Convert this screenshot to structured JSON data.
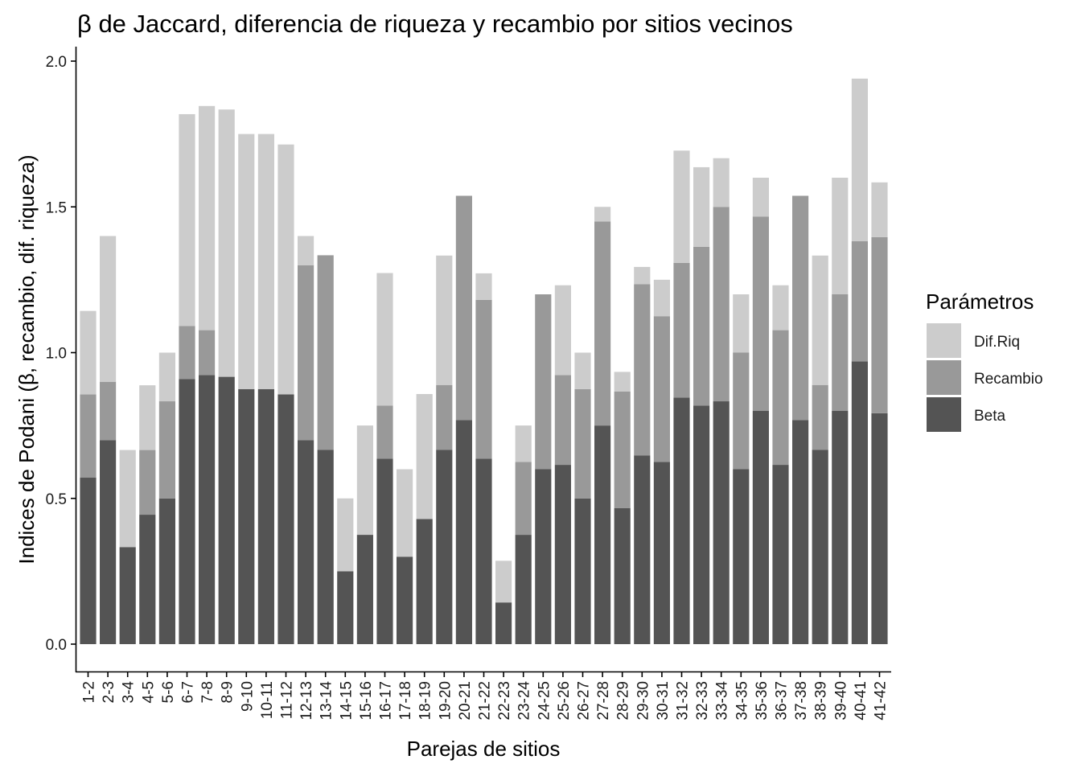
{
  "chart_data": {
    "type": "bar",
    "stacked": true,
    "title": "β de Jaccard, diferencia de riqueza y recambio por sitios vecinos",
    "xlabel": "Parejas de sitios",
    "ylabel": "Indices de Podani (β, recambio, dif. riqueza)",
    "ylim": [
      0,
      2.0
    ],
    "yticks": [
      "0.0",
      "0.5",
      "1.0",
      "1.5",
      "2.0"
    ],
    "grid": false,
    "legend": {
      "title": "Parámetros",
      "position": "right"
    },
    "categories": [
      "1-2",
      "2-3",
      "3-4",
      "4-5",
      "5-6",
      "6-7",
      "7-8",
      "8-9",
      "9-10",
      "10-11",
      "11-12",
      "12-13",
      "13-14",
      "14-15",
      "15-16",
      "16-17",
      "17-18",
      "18-19",
      "19-20",
      "20-21",
      "21-22",
      "22-23",
      "23-24",
      "24-25",
      "25-26",
      "26-27",
      "27-28",
      "28-29",
      "29-30",
      "30-31",
      "31-32",
      "32-33",
      "33-34",
      "34-35",
      "35-36",
      "36-37",
      "37-38",
      "38-39",
      "39-40",
      "40-41",
      "41-42"
    ],
    "series": [
      {
        "name": "Beta",
        "color": "#545454",
        "values": [
          0.571,
          0.7,
          0.333,
          0.444,
          0.5,
          0.909,
          0.923,
          0.917,
          0.875,
          0.875,
          0.857,
          0.7,
          0.667,
          0.25,
          0.375,
          0.636,
          0.3,
          0.429,
          0.667,
          0.769,
          0.636,
          0.143,
          0.375,
          0.6,
          0.615,
          0.5,
          0.75,
          0.467,
          0.647,
          0.625,
          0.846,
          0.818,
          0.833,
          0.6,
          0.8,
          0.615,
          0.769,
          0.667,
          0.8,
          0.97,
          0.792
        ]
      },
      {
        "name": "Recambio",
        "color": "#999999",
        "values": [
          0.286,
          0.2,
          0.0,
          0.222,
          0.333,
          0.182,
          0.154,
          0.0,
          0.0,
          0.0,
          0.0,
          0.6,
          0.667,
          0.0,
          0.0,
          0.182,
          0.0,
          0.0,
          0.222,
          0.769,
          0.545,
          0.0,
          0.25,
          0.6,
          0.308,
          0.375,
          0.7,
          0.4,
          0.588,
          0.5,
          0.462,
          0.545,
          0.667,
          0.4,
          0.667,
          0.462,
          0.769,
          0.222,
          0.4,
          0.412,
          0.604
        ]
      },
      {
        "name": "Dif.Riq",
        "color": "#cccccc",
        "values": [
          0.286,
          0.5,
          0.333,
          0.222,
          0.167,
          0.727,
          0.769,
          0.917,
          0.875,
          0.875,
          0.857,
          0.1,
          0.0,
          0.25,
          0.375,
          0.455,
          0.3,
          0.429,
          0.444,
          0.0,
          0.091,
          0.143,
          0.125,
          0.0,
          0.308,
          0.125,
          0.05,
          0.067,
          0.059,
          0.125,
          0.385,
          0.273,
          0.167,
          0.2,
          0.133,
          0.154,
          0.0,
          0.444,
          0.4,
          0.558,
          0.188
        ]
      }
    ]
  }
}
